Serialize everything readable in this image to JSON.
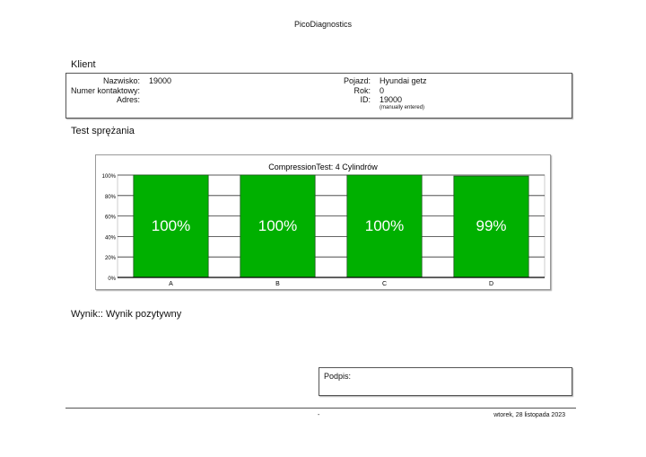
{
  "header": {
    "title": "PicoDiagnostics"
  },
  "client": {
    "heading": "Klient",
    "name_label": "Nazwisko:",
    "name_value": "19000",
    "contact_label": "Numer kontaktowy:",
    "contact_value": "",
    "address_label": "Adres:",
    "address_value": "",
    "vehicle_label": "Pojazd:",
    "vehicle_value": "Hyundai getz",
    "year_label": "Rok:",
    "year_value": "0",
    "id_label": "ID:",
    "id_value": "19000",
    "id_note": "(manually entered)"
  },
  "test": {
    "heading": "Test sprężania"
  },
  "chart_data": {
    "type": "bar",
    "title": "CompressionTest: 4 Cylindrów",
    "categories": [
      "A",
      "B",
      "C",
      "D"
    ],
    "values": [
      100,
      100,
      100,
      99
    ],
    "data_labels": [
      "100%",
      "100%",
      "100%",
      "99%"
    ],
    "yticks": [
      "0%",
      "20%",
      "40%",
      "60%",
      "80%",
      "100%"
    ],
    "ylim": [
      0,
      100
    ],
    "grid": true,
    "bar_color": "#00b000",
    "label_color": "#ffffff"
  },
  "result": {
    "text": "Wynik:: Wynik pozytywny"
  },
  "signature": {
    "label": "Podpis:"
  },
  "footer": {
    "left": "-",
    "date": "wtorek, 28 listopada 2023"
  }
}
